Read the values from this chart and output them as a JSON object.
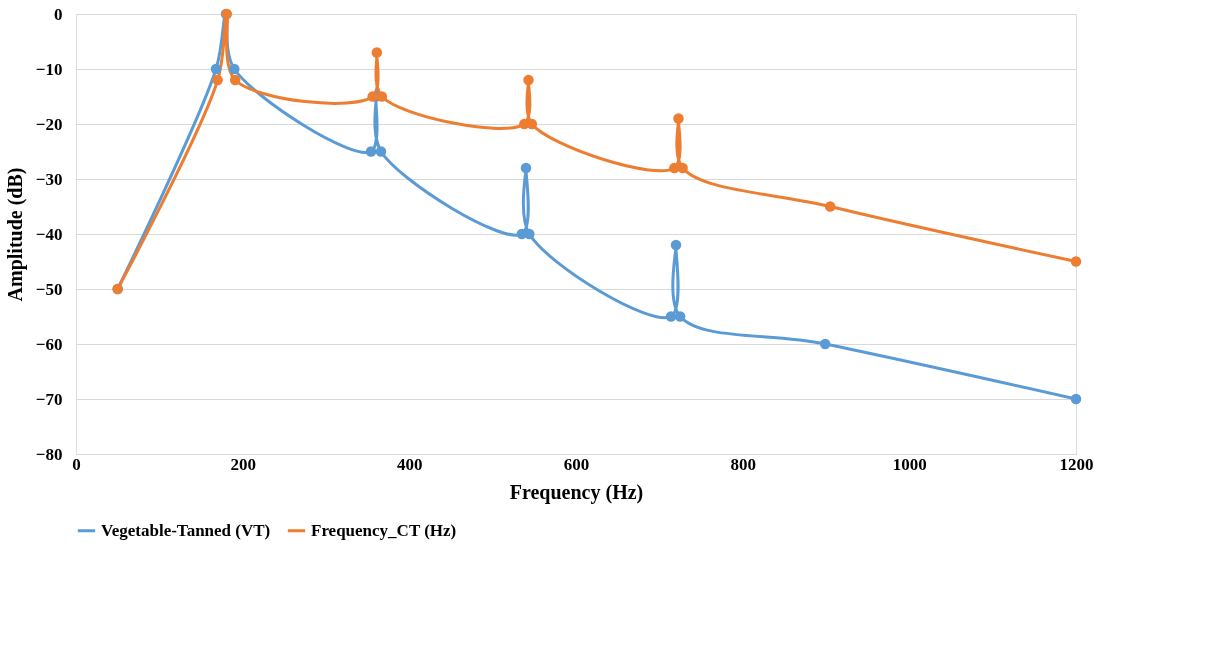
{
  "chart_data": {
    "type": "line",
    "xlabel": "Frequency (Hz)",
    "ylabel": "Amplitude (dB)",
    "xlim": [
      0,
      1200
    ],
    "xticks": [
      0,
      200,
      400,
      600,
      800,
      1000,
      1200
    ],
    "ylim": [
      -80,
      0
    ],
    "yticks": [
      -80,
      -70,
      -60,
      -50,
      -40,
      -30,
      -20,
      -10,
      0
    ],
    "grid": "y",
    "legend": "bottom",
    "marker": "circle",
    "line_style": "solid",
    "series": [
      {
        "name": "Vegetable-Tanned (VT)",
        "color": "#5b9bd5",
        "x": [
          50,
          168,
          180,
          190,
          354,
          360,
          366,
          535,
          540,
          544,
          714,
          720,
          725,
          899,
          1200
        ],
        "values": [
          -50,
          -10,
          0,
          -10,
          -25,
          -15,
          -25,
          -40,
          -28,
          -40,
          -55,
          -42,
          -55,
          -60,
          -70
        ]
      },
      {
        "name": "Frequency_CT (Hz)",
        "color": "#ed7d31",
        "x": [
          50,
          170,
          181,
          191,
          356,
          361,
          367,
          538,
          543,
          547,
          718,
          723,
          728,
          905,
          1200
        ],
        "values": [
          -50,
          -12,
          0,
          -12,
          -15,
          -7,
          -15,
          -20,
          -12,
          -20,
          -28,
          -19,
          -28,
          -35,
          -45
        ]
      }
    ]
  }
}
